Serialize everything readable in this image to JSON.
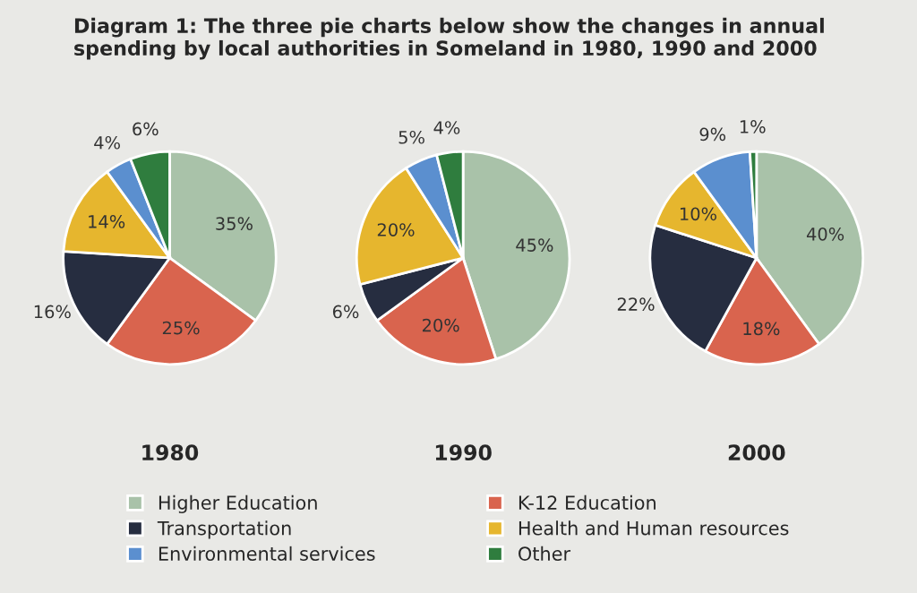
{
  "chart_data": [
    {
      "type": "pie",
      "title": "Diagram 1: The three pie charts below show the changes in annual spending by local authorities in Someland in 1980, 1990 and 2000",
      "xlabel": "1980",
      "legend": "bottom",
      "categories": [
        "Higher Education",
        "K-12 Education",
        "Transportation",
        "Health and Human resources",
        "Environmental services",
        "Other"
      ],
      "values": [
        35,
        25,
        16,
        14,
        4,
        6
      ],
      "value_labels": [
        "35%",
        "25%",
        "16%",
        "14%",
        "4%",
        "6%"
      ],
      "colors": [
        "#a9c2a9",
        "#d9644e",
        "#262d40",
        "#e6b62e",
        "#5b8fcf",
        "#2f7d3e"
      ]
    },
    {
      "type": "pie",
      "xlabel": "1990",
      "values": [
        45,
        20,
        6,
        20,
        5,
        4
      ],
      "value_labels": [
        "45%",
        "20%",
        "6%",
        "20%",
        "5%",
        "4%"
      ],
      "colors": [
        "#a9c2a9",
        "#d9644e",
        "#262d40",
        "#e6b62e",
        "#5b8fcf",
        "#2f7d3e"
      ]
    },
    {
      "type": "pie",
      "xlabel": "2000",
      "values": [
        40,
        18,
        22,
        10,
        9,
        1
      ],
      "value_labels": [
        "40%",
        "18%",
        "22%",
        "10%",
        "9%",
        "1%"
      ],
      "colors": [
        "#a9c2a9",
        "#d9644e",
        "#262d40",
        "#e6b62e",
        "#5b8fcf",
        "#2f7d3e"
      ]
    }
  ]
}
